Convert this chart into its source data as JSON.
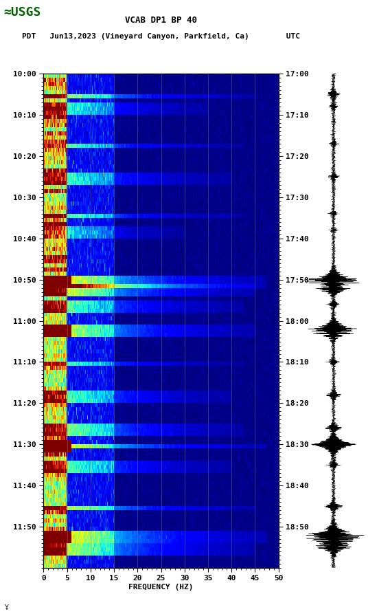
{
  "title_line1": "VCAB DP1 BP 40",
  "title_line2": "PDT   Jun13,2023 (Vineyard Canyon, Parkfield, Ca)        UTC",
  "xlabel": "FREQUENCY (HZ)",
  "freq_min": 0,
  "freq_max": 50,
  "freq_ticks": [
    0,
    5,
    10,
    15,
    20,
    25,
    30,
    35,
    40,
    45,
    50
  ],
  "left_time_labels": [
    "10:00",
    "10:10",
    "10:20",
    "10:30",
    "10:40",
    "10:50",
    "11:00",
    "11:10",
    "11:20",
    "11:30",
    "11:40",
    "11:50"
  ],
  "right_time_labels": [
    "17:00",
    "17:10",
    "17:20",
    "17:30",
    "17:40",
    "17:50",
    "18:00",
    "18:10",
    "18:20",
    "18:30",
    "18:40",
    "18:50"
  ],
  "n_time_rows": 120,
  "n_freq_cols": 500,
  "bg_color": "#000080",
  "colormap": "jet",
  "fig_width": 5.52,
  "fig_height": 8.93,
  "dpi": 100,
  "grid_color": "#808080",
  "grid_freq_positions": [
    5,
    10,
    15,
    20,
    25,
    30,
    35,
    40,
    45
  ],
  "usgs_logo_color": "#006400",
  "background_white": "#ffffff",
  "time_fontsize": 8,
  "title_fontsize": 9,
  "label_fontsize": 8
}
